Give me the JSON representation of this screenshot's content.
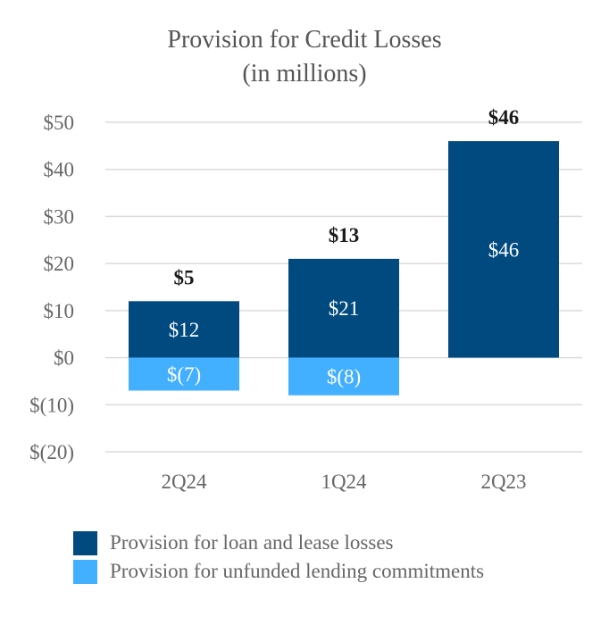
{
  "chart_data": {
    "type": "bar",
    "stacked": true,
    "title": "Provision for Credit Losses",
    "subtitle": "(in millions)",
    "categories": [
      "2Q24",
      "1Q24",
      "2Q23"
    ],
    "series": [
      {
        "name": "Provision for loan and lease losses",
        "color": "#004a80",
        "values": [
          12,
          21,
          46
        ],
        "labels": [
          "$12",
          "$21",
          "$46"
        ]
      },
      {
        "name": "Provision for unfunded lending commitments",
        "color": "#43afff",
        "values": [
          -7,
          -8,
          0
        ],
        "labels": [
          "$(7)",
          "$(8)",
          ""
        ]
      }
    ],
    "totals": [
      5,
      13,
      46
    ],
    "total_labels": [
      "$5",
      "$13",
      "$46"
    ],
    "ylim": [
      -20,
      50
    ],
    "yticks": [
      50,
      40,
      30,
      20,
      10,
      0,
      -10,
      -20
    ],
    "ytick_labels": [
      "$50",
      "$40",
      "$30",
      "$20",
      "$10",
      "$0",
      "$(10)",
      "$(20)"
    ],
    "grid": true,
    "legend_position": "bottom"
  }
}
